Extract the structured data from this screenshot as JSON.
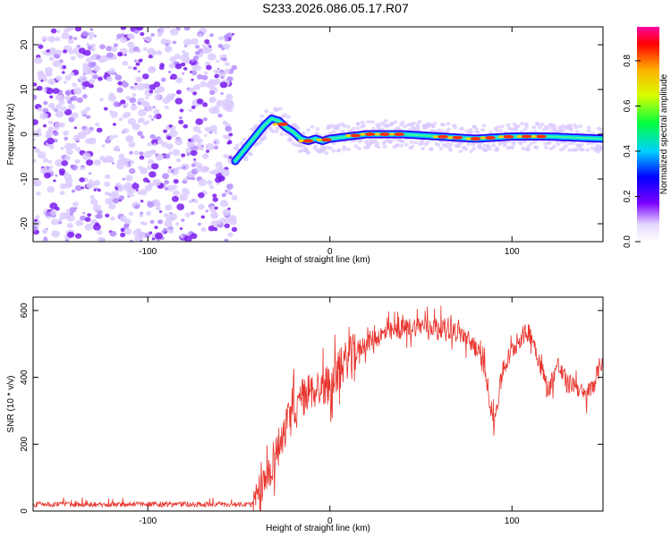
{
  "title": "S233.2026.086.05.17.R07",
  "colors": {
    "line": "#e8352e",
    "frame": "#000000"
  },
  "chart_data": [
    {
      "type": "heatmap",
      "name": "spectrogram",
      "xlabel": "Height of straight line (km)",
      "ylabel": "Frequency (Hz)",
      "xlim": [
        -163,
        150
      ],
      "ylim": [
        -24,
        24
      ],
      "xticks": [
        -100,
        0,
        100
      ],
      "yticks": [
        -20,
        -10,
        0,
        10,
        20
      ],
      "colorbar": {
        "label": "Normalized spectral amplitude",
        "range": [
          0,
          0.95
        ],
        "ticks": [
          0.0,
          0.2,
          0.4,
          0.6,
          0.8
        ]
      },
      "noise_region_x": [
        -163,
        -52
      ],
      "signal_track": {
        "x": [
          -52,
          -48,
          -44,
          -40,
          -36,
          -32,
          -28,
          -24,
          -20,
          -16,
          -12,
          -8,
          -4,
          0,
          10,
          20,
          40,
          60,
          80,
          100,
          120,
          150
        ],
        "freq": [
          -6,
          -4,
          -2,
          0,
          2,
          3.5,
          3,
          1.5,
          0.5,
          -1,
          -1.5,
          -1,
          -1.5,
          -1,
          -0.5,
          0,
          0,
          -0.5,
          -1,
          -0.5,
          -0.5,
          -1
        ]
      }
    },
    {
      "type": "line",
      "name": "snr",
      "xlabel": "Height of straight line (km)",
      "ylabel": "SNR (10 * v/v)",
      "xlim": [
        -163,
        150
      ],
      "ylim": [
        0,
        640
      ],
      "xticks": [
        -100,
        0,
        100
      ],
      "yticks": [
        0,
        200,
        400,
        600
      ],
      "envelope": {
        "x": [
          -163,
          -42,
          -38,
          -35,
          -30,
          -25,
          -20,
          -15,
          -10,
          -5,
          0,
          5,
          10,
          15,
          20,
          30,
          40,
          50,
          60,
          70,
          80,
          85,
          90,
          95,
          100,
          105,
          110,
          115,
          120,
          125,
          130,
          135,
          140,
          145,
          150
        ],
        "y": [
          20,
          20,
          55,
          95,
          170,
          240,
          300,
          340,
          360,
          370,
          380,
          420,
          460,
          480,
          505,
          530,
          545,
          555,
          550,
          540,
          490,
          430,
          260,
          420,
          480,
          520,
          540,
          450,
          360,
          440,
          380,
          380,
          340,
          380,
          460
        ]
      }
    }
  ]
}
